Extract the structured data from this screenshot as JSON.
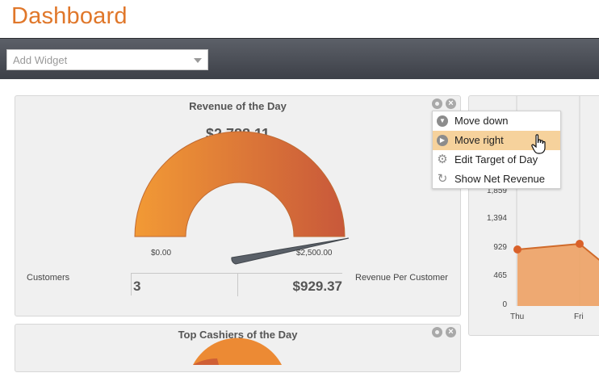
{
  "header": {
    "title": "Dashboard"
  },
  "toolbar": {
    "add_widget": "Add Widget"
  },
  "revenue_widget": {
    "title": "Revenue of the Day",
    "value": "$2,788.11",
    "gauge_min": "$0.00",
    "gauge_max": "$2,500.00",
    "customers_label": "Customers",
    "customers_value": "3",
    "rpc_label": "Revenue Per Customer",
    "rpc_value": "$929.37"
  },
  "cashiers_widget": {
    "title": "Top Cashiers of the Day"
  },
  "context_menu": {
    "items": [
      {
        "label": "Move down",
        "icon": "arrow-down-circle-icon"
      },
      {
        "label": "Move right",
        "icon": "arrow-right-circle-icon"
      },
      {
        "label": "Edit Target of Day",
        "icon": "gear-icon"
      },
      {
        "label": "Show Net Revenue",
        "icon": "refresh-icon"
      }
    ],
    "highlighted_index": 1
  },
  "chart_data": {
    "type": "area",
    "categories": [
      "Thu",
      "Fri"
    ],
    "y_ticks": [
      "1,859",
      "1,394",
      "929",
      "465",
      "0"
    ],
    "values": [
      929,
      1000
    ]
  },
  "colors": {
    "accent": "#e0772a",
    "gauge_start": "#f29a35",
    "gauge_end": "#c8583a",
    "menu_highlight": "#f6d29c"
  }
}
